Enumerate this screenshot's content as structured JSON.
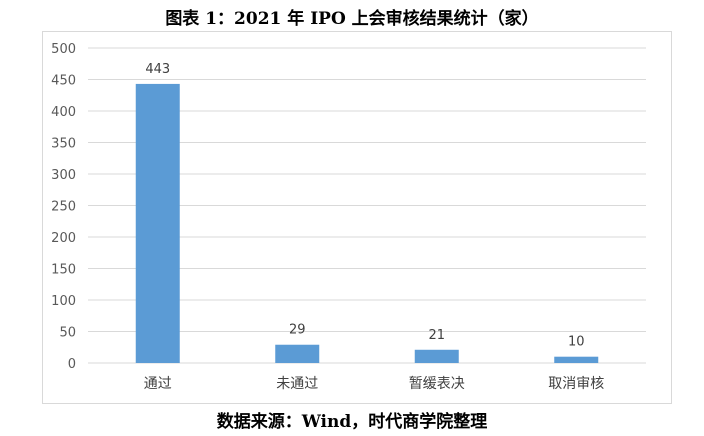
{
  "title": "图表 1：2021 年 IPO 上会审核结果统计（家）",
  "source": "数据来源：Wind，时代商学院整理",
  "chart_data": {
    "type": "bar",
    "title": "图表 1：2021 年 IPO 上会审核结果统计（家）",
    "categories": [
      "通过",
      "未通过",
      "暂缓表决",
      "取消审核"
    ],
    "values": [
      443,
      29,
      21,
      10
    ],
    "data_labels": [
      "443",
      "29",
      "21",
      "10"
    ],
    "ylim": [
      0,
      500
    ],
    "yticks": [
      0,
      50,
      100,
      150,
      200,
      250,
      300,
      350,
      400,
      450,
      500
    ],
    "xlabel": "",
    "ylabel": "",
    "grid": true,
    "legend": "none",
    "bar_color": "#5b9bd5",
    "grid_color": "#d9d9d9"
  }
}
